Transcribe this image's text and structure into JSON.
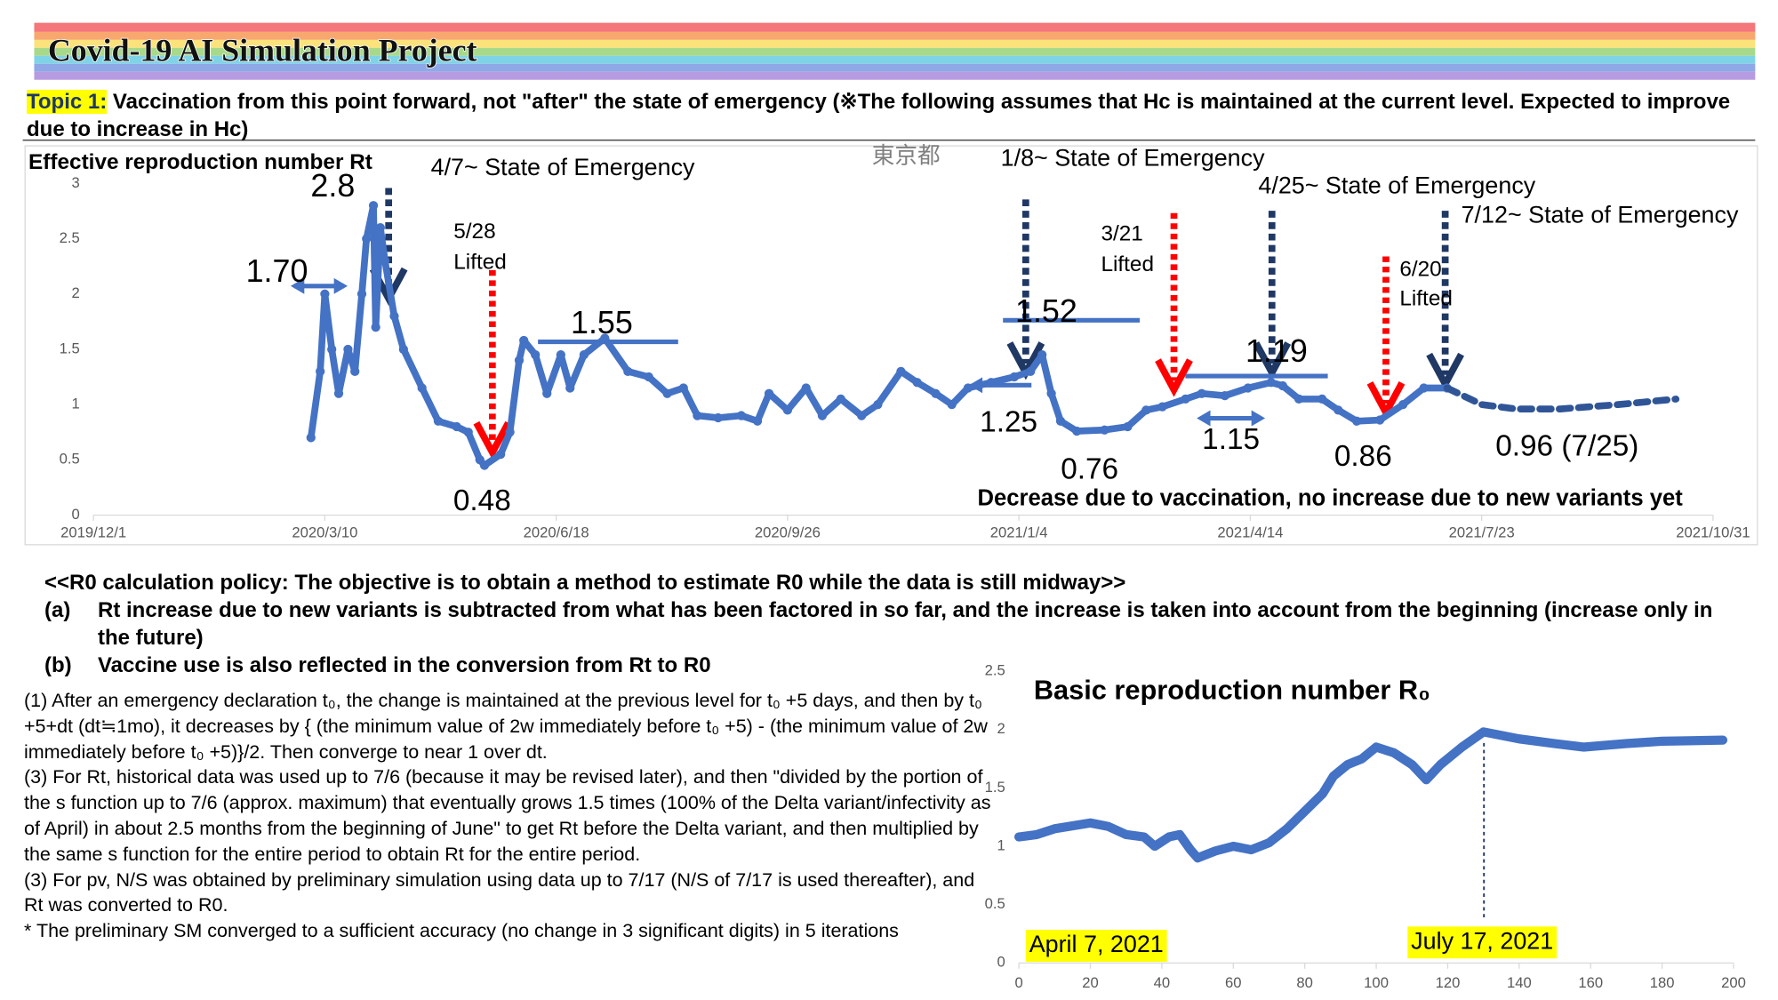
{
  "header": {
    "title": "Covid-19 AI Simulation Project"
  },
  "topic": {
    "label": "Topic 1:",
    "text": "Vaccination from this point forward, not \"after\" the state of emergency (※The following assumes that Hc is maintained at the current level. Expected to improve due to increase in Hc)"
  },
  "policy": {
    "heading": "<<R0 calculation policy: The objective is to obtain a method to estimate R0 while the data is still midway>>",
    "items": [
      {
        "label": "(a)",
        "text": "Rt increase due to new variants is subtracted from what has been factored in so far, and the increase is taken into account from the beginning (increase only in the future)"
      },
      {
        "label": "(b)",
        "text": "Vaccine use is also reflected in the conversion from Rt to R0"
      }
    ]
  },
  "notes": [
    "(1) After an emergency declaration t₀, the change is maintained at the previous level for t₀ +5 days, and then by t₀ +5+dt (dt≒1mo), it decreases by { (the minimum value of 2w immediately before t₀ +5) - (the minimum value of 2w immediately before t₀ +5)}/2. Then converge to near 1 over dt.",
    "(3) For Rt, historical data was used up to 7/6 (because it may be revised later), and then \"divided by the portion of the s function up to 7/6 (approx. maximum) that eventually grows 1.5 times (100% of the Delta variant/infectivity as of April) in about 2.5 months from the beginning of June\" to get Rt before the Delta variant, and then multiplied by the same s function for the entire period to obtain Rt for the entire period.",
    "(3) For pv, N/S was obtained by preliminary simulation using data up to 7/17 (N/S of 7/17 is used thereafter), and Rt was converted to R0.",
    "* The preliminary SM converged to a sufficient accuracy (no change in 3 significant digits) in 5 iterations"
  ],
  "chart_data": [
    {
      "type": "line",
      "title": "Effective reproduction number Rt",
      "xlim": [
        "2019/12/1",
        "2021/10/31"
      ],
      "xticks": [
        "2019/12/1",
        "2020/3/10",
        "2020/6/18",
        "2020/9/26",
        "2021/1/4",
        "2021/4/14",
        "2021/7/23",
        "2021/10/31"
      ],
      "ylim": [
        0,
        3
      ],
      "yticks": [
        0,
        0.5,
        1,
        1.5,
        2,
        2.5,
        3
      ],
      "grid": false,
      "series": [
        {
          "color": "#4472c4",
          "style": "solid",
          "markers": true,
          "x": [
            "2020/3/4",
            "2020/3/8",
            "2020/3/10",
            "2020/3/13",
            "2020/3/16",
            "2020/3/20",
            "2020/3/23",
            "2020/3/26",
            "2020/3/28",
            "2020/3/31",
            "2020/4/1",
            "2020/4/3",
            "2020/4/5",
            "2020/4/9",
            "2020/4/13",
            "2020/4/21",
            "2020/4/28",
            "2020/5/6",
            "2020/5/11",
            "2020/5/16",
            "2020/5/18",
            "2020/5/25",
            "2020/5/29",
            "2020/6/2",
            "2020/6/4",
            "2020/6/9",
            "2020/6/14",
            "2020/6/20",
            "2020/6/24",
            "2020/6/30",
            "2020/7/9",
            "2020/7/19",
            "2020/7/28",
            "2020/8/5",
            "2020/8/12",
            "2020/8/18",
            "2020/8/27",
            "2020/9/6",
            "2020/9/13",
            "2020/9/18",
            "2020/9/26",
            "2020/10/4",
            "2020/10/11",
            "2020/10/19",
            "2020/10/28",
            "2020/11/4",
            "2020/11/14",
            "2020/11/21",
            "2020/11/29",
            "2020/12/6",
            "2020/12/13",
            "2020/12/23",
            "2021/1/2",
            "2021/1/9",
            "2021/1/14",
            "2021/1/18",
            "2021/1/22",
            "2021/1/29",
            "2021/2/10",
            "2021/2/20",
            "2021/2/28",
            "2021/3/7",
            "2021/3/17",
            "2021/3/24",
            "2021/4/3",
            "2021/4/13",
            "2021/4/23",
            "2021/4/28",
            "2021/5/5",
            "2021/5/15",
            "2021/5/22",
            "2021/5/30",
            "2021/6/9",
            "2021/6/19",
            "2021/6/28",
            "2021/7/8"
          ],
          "values": [
            0.7,
            1.3,
            2.0,
            1.5,
            1.1,
            1.5,
            1.3,
            2.0,
            2.5,
            2.8,
            1.7,
            2.6,
            2.3,
            1.8,
            1.5,
            1.15,
            0.85,
            0.8,
            0.75,
            0.5,
            0.45,
            0.55,
            0.75,
            1.4,
            1.58,
            1.45,
            1.1,
            1.45,
            1.15,
            1.45,
            1.6,
            1.3,
            1.25,
            1.1,
            1.15,
            0.9,
            0.88,
            0.9,
            0.85,
            1.1,
            0.95,
            1.15,
            0.9,
            1.05,
            0.9,
            1.0,
            1.3,
            1.2,
            1.1,
            1.0,
            1.15,
            1.2,
            1.25,
            1.3,
            1.45,
            1.1,
            0.85,
            0.76,
            0.77,
            0.8,
            0.95,
            0.98,
            1.05,
            1.1,
            1.08,
            1.15,
            1.2,
            1.17,
            1.05,
            1.05,
            0.95,
            0.85,
            0.86,
            1.0,
            1.15,
            1.15
          ]
        },
        {
          "color": "#2f5597",
          "style": "dashed",
          "markers": false,
          "x": [
            "2021/7/8",
            "2021/7/23",
            "2021/8/7",
            "2021/8/26",
            "2021/9/20",
            "2021/10/15"
          ],
          "values": [
            1.15,
            1.0,
            0.96,
            0.96,
            1.0,
            1.05
          ]
        }
      ],
      "annotations": [
        "2.8",
        "4/7~ State of Emergency",
        "東京都",
        "1/8~ State of Emergency",
        "4/25~ State of Emergency",
        "7/12~ State of Emergency",
        "5/28",
        "Lifted",
        "3/21",
        "Lifted",
        "6/20",
        "Lifted",
        "1.70",
        "1.55",
        "1.52",
        "1.19",
        "1.25",
        "0.76",
        "1.15",
        "0.86",
        "0.96 (7/25)",
        "0.48",
        "Decrease due to vaccination, no increase due to new variants yet"
      ]
    },
    {
      "type": "line",
      "title": "Basic reproduction number R₀",
      "xlim": [
        0,
        200
      ],
      "xticks": [
        0,
        20,
        40,
        60,
        80,
        100,
        120,
        140,
        160,
        180,
        200
      ],
      "ylim": [
        0,
        2.5
      ],
      "yticks": [
        0,
        0.5,
        1,
        1.5,
        2,
        2.5
      ],
      "grid": false,
      "series": [
        {
          "color": "#4472c4",
          "style": "solid",
          "markers": false,
          "x": [
            0,
            5,
            10,
            20,
            25,
            30,
            35,
            38,
            42,
            45,
            48,
            50,
            55,
            60,
            65,
            70,
            75,
            80,
            85,
            88,
            92,
            96,
            100,
            105,
            110,
            114,
            118,
            124,
            130,
            140,
            150,
            158,
            170,
            180,
            197
          ],
          "values": [
            1.08,
            1.1,
            1.15,
            1.2,
            1.17,
            1.1,
            1.08,
            1.0,
            1.08,
            1.1,
            0.97,
            0.9,
            0.96,
            1.0,
            0.97,
            1.03,
            1.15,
            1.3,
            1.45,
            1.6,
            1.7,
            1.75,
            1.85,
            1.8,
            1.7,
            1.57,
            1.7,
            1.85,
            1.98,
            1.92,
            1.88,
            1.85,
            1.88,
            1.9,
            1.91
          ]
        }
      ],
      "annotations": [
        "April 7, 2021",
        "July 17, 2021"
      ]
    }
  ]
}
